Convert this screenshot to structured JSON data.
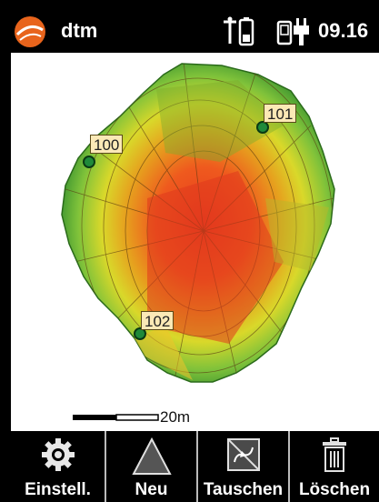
{
  "app": {
    "title": "dtm",
    "clock": "09.16"
  },
  "map": {
    "points": [
      {
        "id": "100"
      },
      {
        "id": "101"
      },
      {
        "id": "102"
      }
    ],
    "scale_label": "20m"
  },
  "toolbar": {
    "buttons": [
      {
        "label": "Einstell.",
        "icon": "gear-icon"
      },
      {
        "label": "Neu",
        "icon": "triangle-icon"
      },
      {
        "label": "Tauschen",
        "icon": "swap-icon"
      },
      {
        "label": "Löschen",
        "icon": "trash-icon"
      }
    ]
  },
  "colors": {
    "accent": "#e8641c",
    "background": "#000000",
    "map_bg": "#ffffff"
  }
}
